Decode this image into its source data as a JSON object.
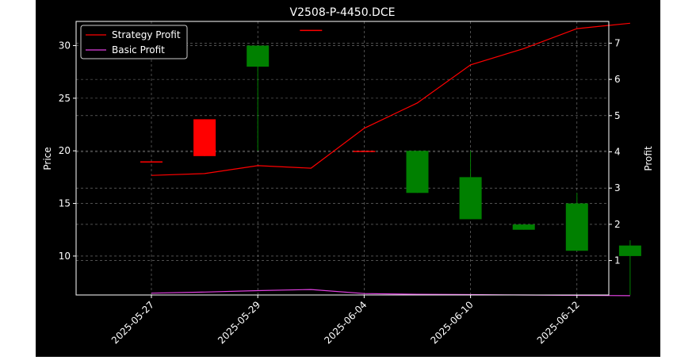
{
  "chart_data": {
    "type": "candlestick",
    "title": "V2508-P-4450.DCE",
    "ylabel": "Price",
    "y2label": "Profit",
    "ylim": [
      6.3,
      32.3
    ],
    "y2lim": [
      0.05,
      7.6
    ],
    "yticks": [
      10,
      15,
      20,
      25,
      30
    ],
    "y2ticks": [
      1,
      2,
      3,
      4,
      5,
      6,
      7
    ],
    "grid": true,
    "legend": "upper-left",
    "x_labels": [
      "2025-05-27",
      "",
      "2025-05-29",
      "",
      "2025-06-04",
      "",
      "2025-06-10",
      "",
      "2025-06-12",
      ""
    ],
    "candles": [
      {
        "open": 19.0,
        "high": 19.0,
        "low": 19.0,
        "close": 19.0,
        "color": "#ff0000"
      },
      {
        "open": 23.0,
        "high": 23.0,
        "low": 19.5,
        "close": 19.5,
        "color": "#ff0000"
      },
      {
        "open": 28.0,
        "high": 30.0,
        "low": 20.0,
        "close": 30.0,
        "color": "#008000"
      },
      {
        "open": 31.5,
        "high": 31.5,
        "low": 31.5,
        "close": 31.5,
        "color": "#ff0000"
      },
      {
        "open": 20.0,
        "high": 20.0,
        "low": 20.0,
        "close": 20.0,
        "color": "#ff0000"
      },
      {
        "open": 16.0,
        "high": 20.0,
        "low": 16.0,
        "close": 20.0,
        "color": "#008000"
      },
      {
        "open": 13.5,
        "high": 20.0,
        "low": 13.5,
        "close": 17.5,
        "color": "#008000"
      },
      {
        "open": 12.5,
        "high": 13.0,
        "low": 12.5,
        "close": 13.0,
        "color": "#008000"
      },
      {
        "open": 10.5,
        "high": 16.0,
        "low": 10.5,
        "close": 15.0,
        "color": "#008000"
      },
      {
        "open": 10.0,
        "high": 11.5,
        "low": 6.3,
        "close": 11.0,
        "color": "#008000"
      }
    ],
    "series": [
      {
        "name": "Strategy Profit",
        "color": "#ff0000",
        "values": [
          3.35,
          3.4,
          3.62,
          3.55,
          4.65,
          5.35,
          6.4,
          6.85,
          7.4,
          7.55
        ]
      },
      {
        "name": "Basic Profit",
        "color": "#e040e0",
        "values": [
          0.1,
          0.13,
          0.17,
          0.2,
          0.09,
          0.07,
          0.06,
          0.05,
          0.04,
          0.03
        ]
      }
    ]
  },
  "colors": {
    "background": "#000000",
    "axes": "#ffffff",
    "grid": "#808080"
  }
}
